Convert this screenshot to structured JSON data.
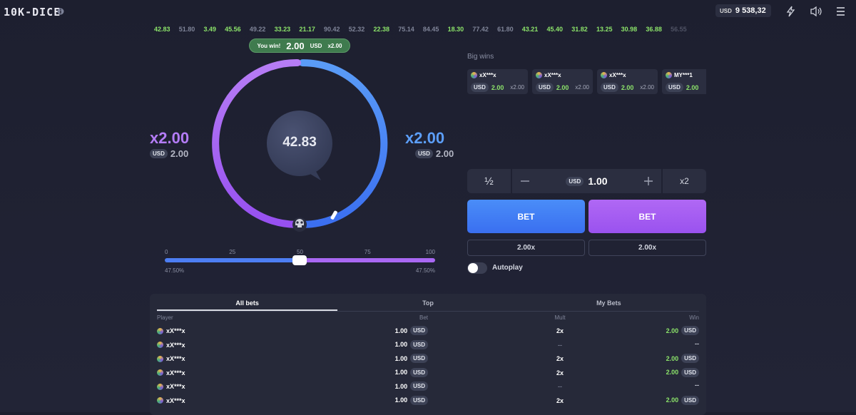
{
  "header": {
    "logo": "10K-DICE",
    "balance_currency": "USD",
    "balance": "9 538,32"
  },
  "history": [
    {
      "value": "42.83",
      "win": true
    },
    {
      "value": "51.80",
      "win": false
    },
    {
      "value": "3.49",
      "win": true
    },
    {
      "value": "45.56",
      "win": true
    },
    {
      "value": "49.22",
      "win": false
    },
    {
      "value": "33.23",
      "win": true
    },
    {
      "value": "21.17",
      "win": true
    },
    {
      "value": "90.42",
      "win": false
    },
    {
      "value": "52.32",
      "win": false
    },
    {
      "value": "22.38",
      "win": true
    },
    {
      "value": "75.14",
      "win": false
    },
    {
      "value": "84.45",
      "win": false
    },
    {
      "value": "18.30",
      "win": true
    },
    {
      "value": "77.42",
      "win": false
    },
    {
      "value": "61.80",
      "win": false
    },
    {
      "value": "43.21",
      "win": true
    },
    {
      "value": "45.40",
      "win": true
    },
    {
      "value": "31.82",
      "win": true
    },
    {
      "value": "13.25",
      "win": true
    },
    {
      "value": "30.98",
      "win": true
    },
    {
      "value": "36.88",
      "win": true
    },
    {
      "value": "56.55",
      "win": false
    }
  ],
  "win_banner": {
    "label": "You win!",
    "amount": "2.00",
    "currency": "USD",
    "multiplier": "x2.00"
  },
  "game": {
    "left": {
      "multiplier": "x2.00",
      "currency": "USD",
      "amount": "2.00"
    },
    "right": {
      "multiplier": "x2.00",
      "currency": "USD",
      "amount": "2.00"
    },
    "result": "42.83"
  },
  "slider": {
    "ticks": [
      "0",
      "25",
      "50",
      "75",
      "100"
    ],
    "left_chance": "47.50%",
    "right_chance": "47.50%"
  },
  "big_wins": {
    "title": "Big wins",
    "cards": [
      {
        "player": "xX***x",
        "currency": "USD",
        "amount": "2.00",
        "multiplier": "x2.00"
      },
      {
        "player": "xX***x",
        "currency": "USD",
        "amount": "2.00",
        "multiplier": "x2.00"
      },
      {
        "player": "xX***x",
        "currency": "USD",
        "amount": "2.00",
        "multiplier": "x2.00"
      },
      {
        "player": "MY***1",
        "currency": "USD",
        "amount": "2.00"
      }
    ]
  },
  "bet_controls": {
    "half": "½",
    "currency": "USD",
    "amount": "1.00",
    "double": "x2",
    "bet_left": "BET",
    "bet_right": "BET",
    "payout_left": "2.00x",
    "payout_right": "2.00x",
    "autoplay": "Autoplay"
  },
  "bets_table": {
    "tabs": [
      "All bets",
      "Top",
      "My Bets"
    ],
    "columns": [
      "Player",
      "Bet",
      "Mult",
      "Win"
    ],
    "rows": [
      {
        "player": "xX***x",
        "bet": "1.00",
        "bet_currency": "USD",
        "mult": "2x",
        "win": "2.00",
        "win_currency": "USD"
      },
      {
        "player": "xX***x",
        "bet": "1.00",
        "bet_currency": "USD",
        "mult": "--",
        "win": "--"
      },
      {
        "player": "xX***x",
        "bet": "1.00",
        "bet_currency": "USD",
        "mult": "2x",
        "win": "2.00",
        "win_currency": "USD"
      },
      {
        "player": "xX***x",
        "bet": "1.00",
        "bet_currency": "USD",
        "mult": "2x",
        "win": "2.00",
        "win_currency": "USD"
      },
      {
        "player": "xX***x",
        "bet": "1.00",
        "bet_currency": "USD",
        "mult": "--",
        "win": "--"
      },
      {
        "player": "xX***x",
        "bet": "1.00",
        "bet_currency": "USD",
        "mult": "2x",
        "win": "2.00",
        "win_currency": "USD"
      }
    ]
  }
}
